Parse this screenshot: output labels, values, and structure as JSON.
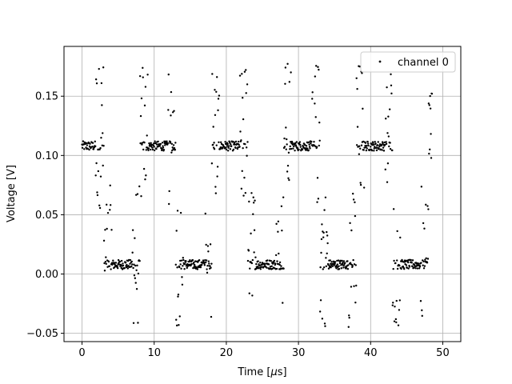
{
  "chart_data": {
    "type": "scatter",
    "title": "",
    "xlabel_prefix": "Time [",
    "xlabel_unit": "μ",
    "xlabel_suffix": "s]",
    "ylabel": "Voltage [V]",
    "xlim": [
      -2.5,
      52.5
    ],
    "ylim": [
      -0.057,
      0.192
    ],
    "xticks": [
      0,
      10,
      20,
      30,
      40,
      50
    ],
    "yticks": [
      -0.05,
      0.0,
      0.05,
      0.1,
      0.15
    ],
    "xtick_labels": [
      "0",
      "10",
      "20",
      "30",
      "40",
      "50"
    ],
    "ytick_labels": [
      "−0.05",
      "0.00",
      "0.05",
      "0.10",
      "0.15"
    ],
    "grid": true,
    "legend_position": "top-right",
    "series": [
      {
        "name": "channel 0",
        "color": "#000000",
        "marker": "dot",
        "signal": {
          "kind": "square-wave",
          "period_us": 10,
          "high_duration_us": 5,
          "first_high_start_us": -2.0,
          "high_level_v": 0.108,
          "low_level_v": 0.008,
          "x_range_us": [
            0,
            48.5
          ],
          "sample_step_us": 0.05,
          "dense_band_halfwidth_v": 0.004,
          "ringing_high_range_v": [
            0.055,
            0.18
          ],
          "ringing_low_range_v": [
            -0.045,
            0.075
          ]
        }
      }
    ]
  }
}
